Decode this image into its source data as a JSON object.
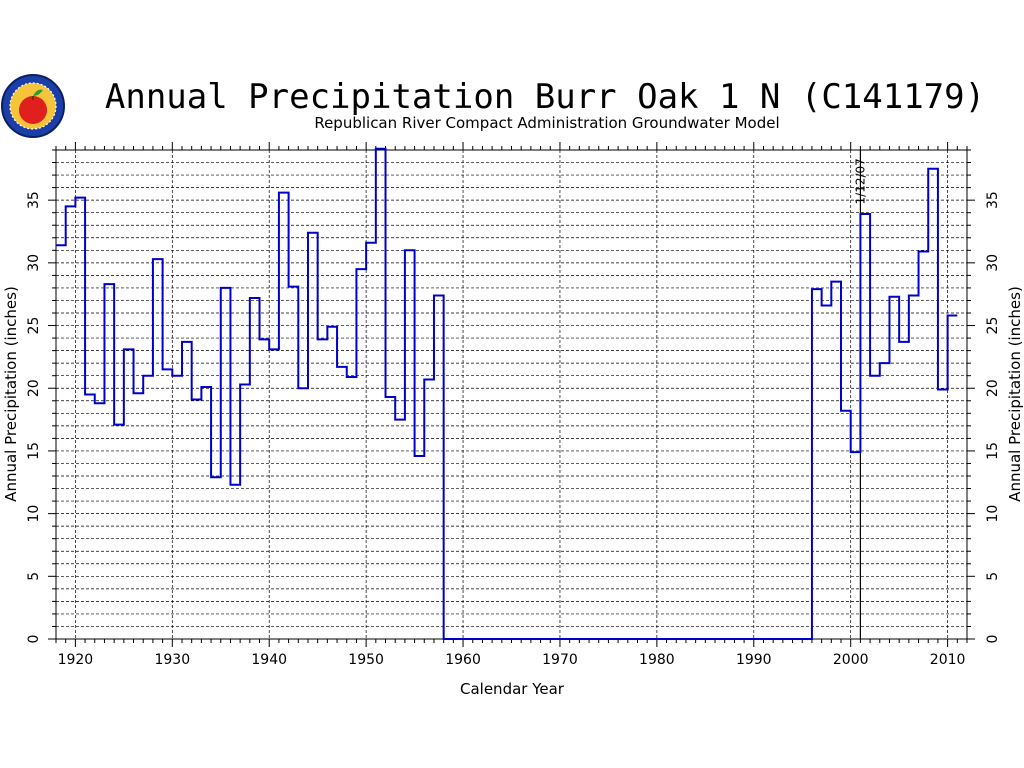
{
  "chart_data": {
    "type": "line",
    "style": "step",
    "title": "Annual Precipitation Burr Oak 1 N (C141179)",
    "subtitle": "Republican River Compact Administration Groundwater Model",
    "xlabel": "Calendar Year",
    "ylabel": "Annual Precipitation (inches)",
    "xlim": [
      1918,
      2012
    ],
    "ylim": [
      0,
      39
    ],
    "x_ticks": [
      1920,
      1930,
      1940,
      1950,
      1960,
      1970,
      1980,
      1990,
      2000,
      2010
    ],
    "y_ticks": [
      0,
      5,
      10,
      15,
      20,
      25,
      30,
      35
    ],
    "x_tick_labels": [
      "1920",
      "1930",
      "1940",
      "1950",
      "1960",
      "1970",
      "1980",
      "1990",
      "2000",
      "2010"
    ],
    "y_tick_labels": [
      "0",
      "5",
      "10",
      "15",
      "20",
      "25",
      "30",
      "35"
    ],
    "grid": true,
    "annotation": {
      "text": "1/12/07",
      "x": 2001
    },
    "colors": {
      "series": "#0000cc",
      "grid": "#000000",
      "frame": "#000000"
    },
    "series": [
      {
        "x": [
          1918,
          1919,
          1920,
          1921,
          1922,
          1923,
          1924,
          1925,
          1926,
          1927,
          1928,
          1929,
          1930,
          1931,
          1932,
          1933,
          1934,
          1935,
          1936,
          1937,
          1938,
          1939,
          1940,
          1941,
          1942,
          1943,
          1944,
          1945,
          1946,
          1947,
          1948,
          1949,
          1950,
          1951,
          1952,
          1953,
          1954,
          1955,
          1956,
          1957,
          1958,
          1959,
          1960,
          1961,
          1962,
          1963,
          1964,
          1965,
          1966,
          1967,
          1968,
          1969,
          1970,
          1971,
          1972,
          1973,
          1974,
          1975,
          1976,
          1977,
          1978,
          1979,
          1980,
          1981,
          1982,
          1983,
          1984,
          1985,
          1986,
          1987,
          1988,
          1989,
          1990,
          1991,
          1992,
          1993,
          1994,
          1995,
          1996,
          1997,
          1998,
          1999,
          2000,
          2001,
          2002,
          2003,
          2004,
          2005,
          2006,
          2007,
          2008,
          2009,
          2010
        ],
        "values": [
          31.4,
          34.5,
          35.2,
          19.5,
          18.8,
          28.3,
          17.1,
          23.1,
          19.6,
          21.0,
          30.3,
          21.5,
          21.0,
          23.7,
          19.1,
          20.1,
          12.9,
          28.0,
          12.3,
          20.3,
          27.2,
          23.9,
          23.1,
          35.6,
          28.1,
          20.0,
          32.4,
          23.9,
          24.9,
          21.7,
          20.9,
          29.5,
          31.6,
          39.1,
          19.3,
          17.5,
          31.0,
          14.6,
          20.7,
          27.4,
          0,
          0,
          0,
          0,
          0,
          0,
          0,
          0,
          0,
          0,
          0,
          0,
          0,
          0,
          0,
          0,
          0,
          0,
          0,
          0,
          0,
          0,
          0,
          0,
          0,
          0,
          0,
          0,
          0,
          0,
          0,
          0,
          0,
          0,
          0,
          0,
          0,
          0,
          27.9,
          26.6,
          28.5,
          18.2,
          14.9,
          33.9,
          21.0,
          22.0,
          27.3,
          23.7,
          27.4,
          30.9,
          37.5,
          19.9,
          25.8
        ]
      }
    ]
  },
  "logo": {
    "name": "apple-seal-logo"
  }
}
